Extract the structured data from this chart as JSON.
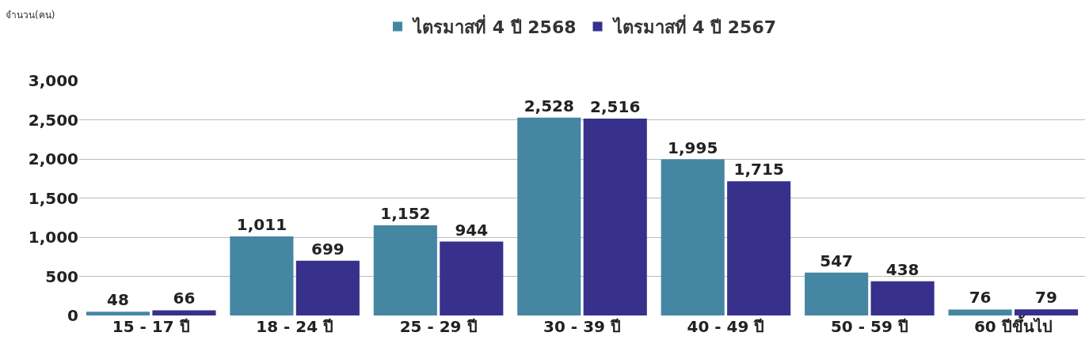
{
  "chart_data": {
    "type": "bar",
    "annotations": [
      "จำนวน(คน)"
    ],
    "categories": [
      "15 - 17 ปี",
      "18 - 24 ปี",
      "25 - 29 ปี",
      "30 - 39 ปี",
      "40 - 49 ปี",
      "50 - 59 ปี",
      "60 ปีขึ้นไป"
    ],
    "series": [
      {
        "name": "ไตรมาสที่ 4 ปี 2568",
        "color": "#4586a3",
        "values": [
          48,
          1011,
          1152,
          2528,
          1995,
          547,
          76
        ],
        "value_labels": [
          "48",
          "1,011",
          "1,152",
          "2,528",
          "1,995",
          "547",
          "76"
        ]
      },
      {
        "name": "ไตรมาสที่ 4 ปี 2567",
        "color": "#37318c",
        "values": [
          66,
          699,
          944,
          2516,
          1715,
          438,
          79
        ],
        "value_labels": [
          "66",
          "699",
          "944",
          "2,516",
          "1,715",
          "438",
          "79"
        ]
      }
    ],
    "ylim": [
      0,
      3000
    ],
    "yticks": [
      0,
      {
        "value": 500,
        "label": "500"
      },
      {
        "value": 1000,
        "label": "1,000"
      },
      {
        "value": 1500,
        "label": "1,500"
      },
      {
        "value": 2000,
        "label": "2,000"
      },
      {
        "value": 2500,
        "label": "2,500"
      },
      {
        "value": 3000,
        "label": "3,000"
      }
    ],
    "grid": "y",
    "legend": "top"
  }
}
